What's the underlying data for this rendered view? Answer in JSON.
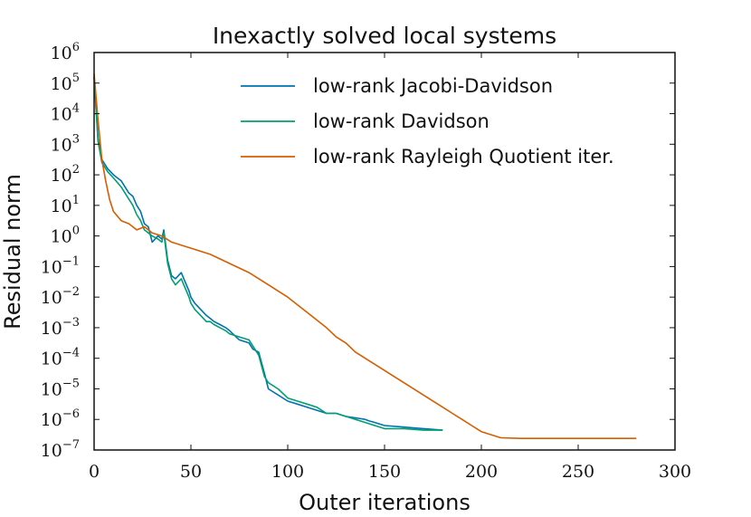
{
  "chart_data": {
    "type": "line",
    "title": "Inexactly solved local systems",
    "xlabel": "Outer iterations",
    "ylabel": "Residual norm",
    "xlim": [
      0,
      300
    ],
    "ylim_log10": [
      -7,
      6
    ],
    "yscale": "log",
    "grid": false,
    "legend_position": "top-right",
    "xticks": [
      0,
      50,
      100,
      150,
      200,
      250,
      300
    ],
    "ytick_exponents": [
      6,
      5,
      4,
      3,
      2,
      1,
      0,
      -1,
      -2,
      -3,
      -4,
      -5,
      -6,
      -7
    ],
    "ytick_base": "10",
    "series": [
      {
        "name": "low-rank Jacobi-Davidson",
        "color": "#0072b2",
        "x": [
          0,
          2,
          4,
          7,
          10,
          14,
          18,
          20,
          22,
          24,
          26,
          28,
          30,
          33,
          35,
          36,
          38,
          40,
          42,
          45,
          47,
          49,
          50,
          52,
          55,
          58,
          60,
          62,
          65,
          68,
          70,
          75,
          80,
          82,
          85,
          88,
          90,
          95,
          100,
          105,
          110,
          115,
          120,
          125,
          130,
          135,
          140,
          142,
          145,
          150,
          160,
          170,
          180
        ],
        "log10_y": [
          5.2,
          3.2,
          2.5,
          2.2,
          2.0,
          1.8,
          1.4,
          1.3,
          1.0,
          0.8,
          0.4,
          0.3,
          -0.2,
          0.0,
          -0.1,
          0.2,
          -0.8,
          -1.3,
          -1.4,
          -1.2,
          -1.5,
          -1.8,
          -2.0,
          -2.2,
          -2.4,
          -2.6,
          -2.7,
          -2.8,
          -2.9,
          -3.0,
          -3.1,
          -3.4,
          -3.5,
          -3.7,
          -3.8,
          -4.5,
          -5.0,
          -5.2,
          -5.4,
          -5.5,
          -5.6,
          -5.7,
          -5.8,
          -5.8,
          -5.9,
          -5.95,
          -6.0,
          -6.05,
          -6.1,
          -6.2,
          -6.25,
          -6.3,
          -6.35
        ]
      },
      {
        "name": "low-rank Davidson",
        "color": "#009e73",
        "x": [
          0,
          2,
          4,
          7,
          10,
          14,
          18,
          20,
          22,
          24,
          26,
          28,
          30,
          33,
          35,
          36,
          38,
          40,
          42,
          45,
          47,
          49,
          50,
          52,
          55,
          58,
          60,
          62,
          65,
          68,
          70,
          75,
          80,
          82,
          85,
          88,
          90,
          95,
          100,
          105,
          110,
          115,
          120,
          125,
          130,
          135,
          140,
          145,
          150,
          160,
          170,
          180
        ],
        "log10_y": [
          5.2,
          3.1,
          2.4,
          2.1,
          1.9,
          1.6,
          1.2,
          1.0,
          0.7,
          0.5,
          0.2,
          0.1,
          0.0,
          -0.1,
          -0.2,
          0.1,
          -0.9,
          -1.4,
          -1.6,
          -1.4,
          -1.7,
          -2.0,
          -2.2,
          -2.4,
          -2.6,
          -2.8,
          -2.8,
          -2.9,
          -3.0,
          -3.1,
          -3.2,
          -3.3,
          -3.4,
          -3.6,
          -3.9,
          -4.6,
          -4.8,
          -5.0,
          -5.3,
          -5.4,
          -5.5,
          -5.6,
          -5.8,
          -5.8,
          -5.9,
          -6.0,
          -6.1,
          -6.2,
          -6.3,
          -6.3,
          -6.35,
          -6.35
        ]
      },
      {
        "name": "low-rank Rayleigh Quotient iter.",
        "color": "#d55e00",
        "x": [
          0,
          2,
          4,
          6,
          8,
          10,
          14,
          18,
          22,
          26,
          30,
          35,
          40,
          50,
          60,
          70,
          80,
          90,
          100,
          110,
          120,
          125,
          130,
          135,
          140,
          150,
          160,
          170,
          180,
          185,
          190,
          195,
          200,
          205,
          210,
          220,
          240,
          260,
          280
        ],
        "log10_y": [
          5.3,
          3.8,
          2.5,
          1.8,
          1.2,
          0.8,
          0.5,
          0.4,
          0.2,
          0.3,
          0.1,
          0.0,
          -0.2,
          -0.4,
          -0.6,
          -0.9,
          -1.2,
          -1.6,
          -2.0,
          -2.5,
          -3.0,
          -3.3,
          -3.5,
          -3.8,
          -4.0,
          -4.4,
          -4.8,
          -5.2,
          -5.6,
          -5.8,
          -6.0,
          -6.2,
          -6.4,
          -6.5,
          -6.6,
          -6.62,
          -6.62,
          -6.62,
          -6.62
        ]
      }
    ]
  }
}
